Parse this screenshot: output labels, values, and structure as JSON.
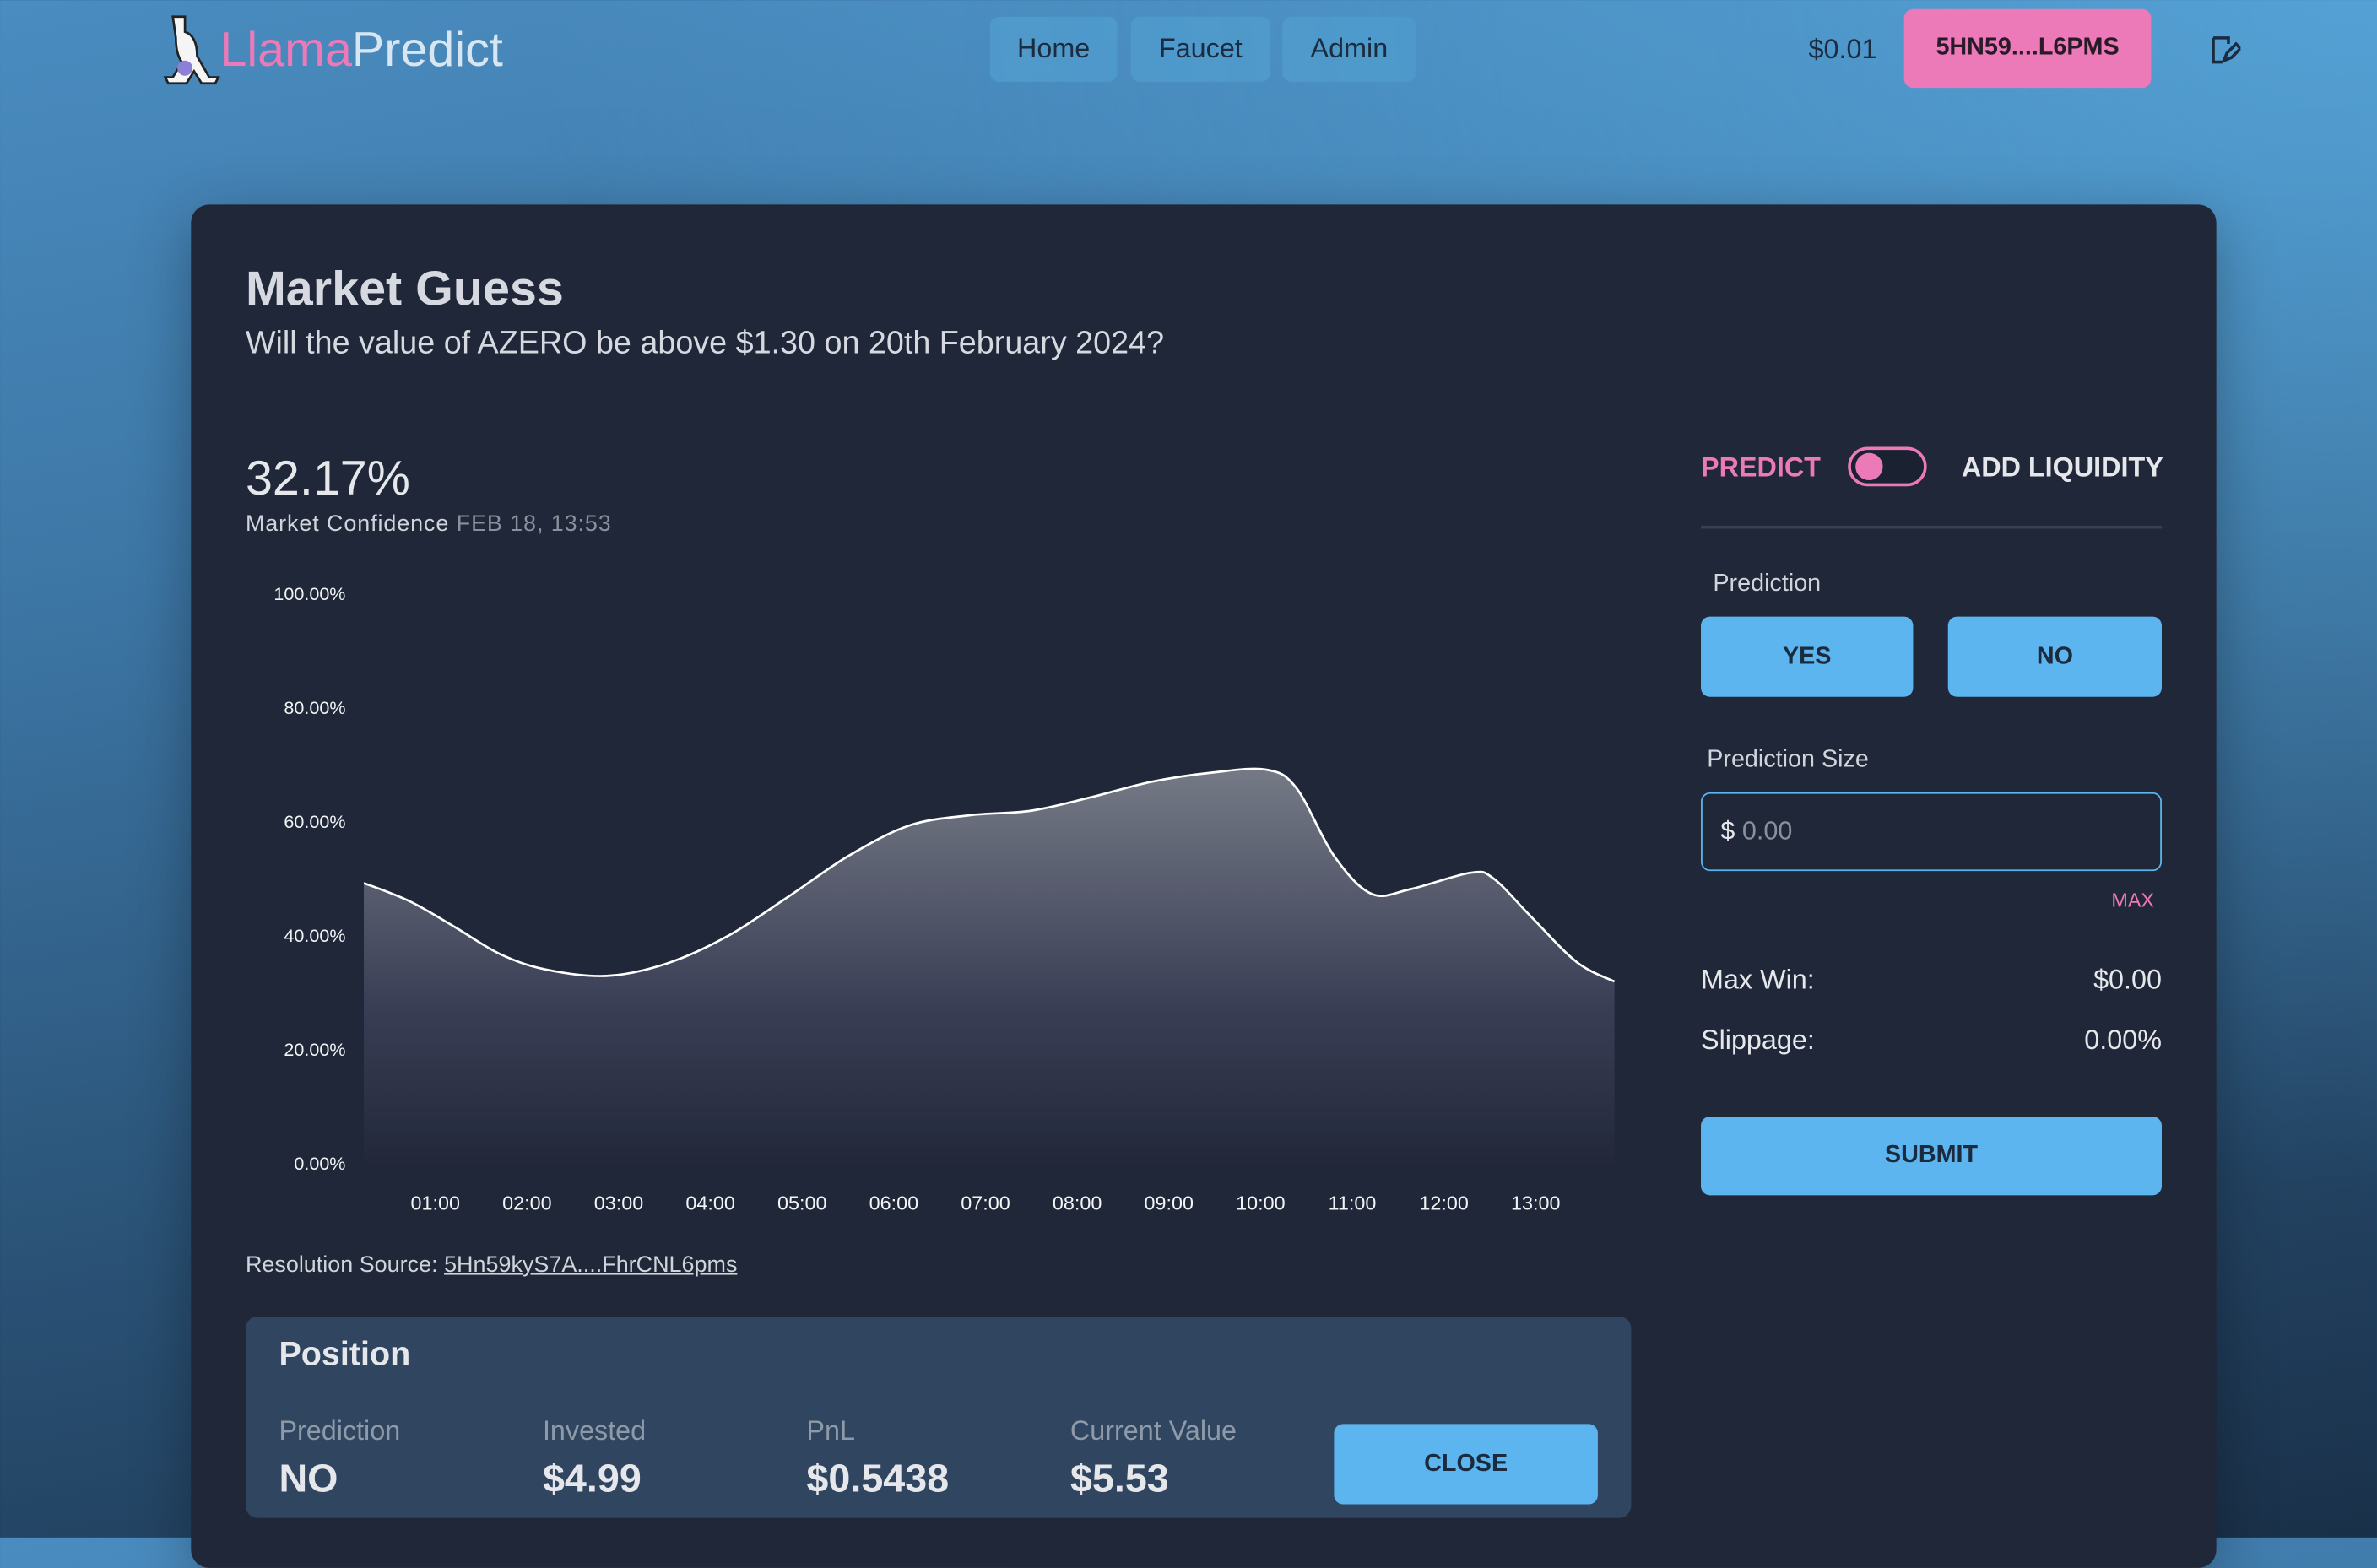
{
  "header": {
    "brand": [
      "Llama",
      "Predict"
    ],
    "nav": [
      "Home",
      "Faucet",
      "Admin"
    ],
    "balance": "$0.01",
    "account": "5HN59....L6PMS"
  },
  "market": {
    "title": "Market Guess",
    "question": "Will the value of AZERO be above $1.30 on 20th February 2024?",
    "confidence": "32.17%",
    "confidence_label": "Market Confidence",
    "timestamp": "FEB 18, 13:53",
    "resolution_label": "Resolution Source:",
    "resolution_link": "5Hn59kyS7A....FhrCNL6pms"
  },
  "chart_data": {
    "type": "area",
    "color": "#ffffff",
    "grid": false,
    "x": [
      0.22,
      0.72,
      1.21,
      1.71,
      2.21,
      2.87,
      3.53,
      4.19,
      4.85,
      5.51,
      6.17,
      6.83,
      7.5,
      8.16,
      8.82,
      9.48,
      10.06,
      10.39,
      10.8,
      11.21,
      11.63,
      12.29,
      12.54,
      12.95,
      13.45,
      13.86
    ],
    "values": [
      49.5,
      46.3,
      41.8,
      37,
      34.3,
      33.2,
      35.4,
      40.2,
      47.1,
      54.3,
      59.6,
      61.4,
      62.2,
      64.6,
      67.3,
      68.9,
      69.4,
      66.2,
      54.3,
      47.6,
      48.4,
      51.3,
      50.3,
      43.6,
      35.6,
      32.2
    ],
    "xlim": [
      0.22,
      13.86
    ],
    "xticks": [
      {
        "value": 1,
        "label": "01:00"
      },
      {
        "value": 2,
        "label": "02:00"
      },
      {
        "value": 3,
        "label": "03:00"
      },
      {
        "value": 4,
        "label": "04:00"
      },
      {
        "value": 5,
        "label": "05:00"
      },
      {
        "value": 6,
        "label": "06:00"
      },
      {
        "value": 7,
        "label": "07:00"
      },
      {
        "value": 8,
        "label": "08:00"
      },
      {
        "value": 9,
        "label": "09:00"
      },
      {
        "value": 10,
        "label": "10:00"
      },
      {
        "value": 11,
        "label": "11:00"
      },
      {
        "value": 12,
        "label": "12:00"
      },
      {
        "value": 13,
        "label": "13:00"
      }
    ],
    "ylim": [
      0,
      100
    ],
    "yticks": [
      {
        "value": 0,
        "label": "0.00%"
      },
      {
        "value": 20,
        "label": "20.00%"
      },
      {
        "value": 40,
        "label": "40.00%"
      },
      {
        "value": 60,
        "label": "60.00%"
      },
      {
        "value": 80,
        "label": "80.00%"
      },
      {
        "value": 100,
        "label": "100.00%"
      }
    ]
  },
  "position": {
    "title": "Position",
    "items": [
      {
        "label": "Prediction",
        "value": "NO"
      },
      {
        "label": "Invested",
        "value": "$4.99"
      },
      {
        "label": "PnL",
        "value": "$0.5438"
      },
      {
        "label": "Current Value",
        "value": "$5.53"
      }
    ],
    "action": "CLOSE"
  },
  "trade": {
    "modes": [
      "PREDICT",
      "ADD LIQUIDITY"
    ],
    "prediction_label": "Prediction",
    "options": [
      "YES",
      "NO"
    ],
    "size_label": "Prediction Size",
    "currency": "$",
    "placeholder": "0.00",
    "max": "MAX",
    "stats": [
      {
        "label": "Max Win:",
        "value": "$0.00"
      },
      {
        "label": "Slippage:",
        "value": "0.00%"
      }
    ],
    "submit": "SUBMIT"
  }
}
